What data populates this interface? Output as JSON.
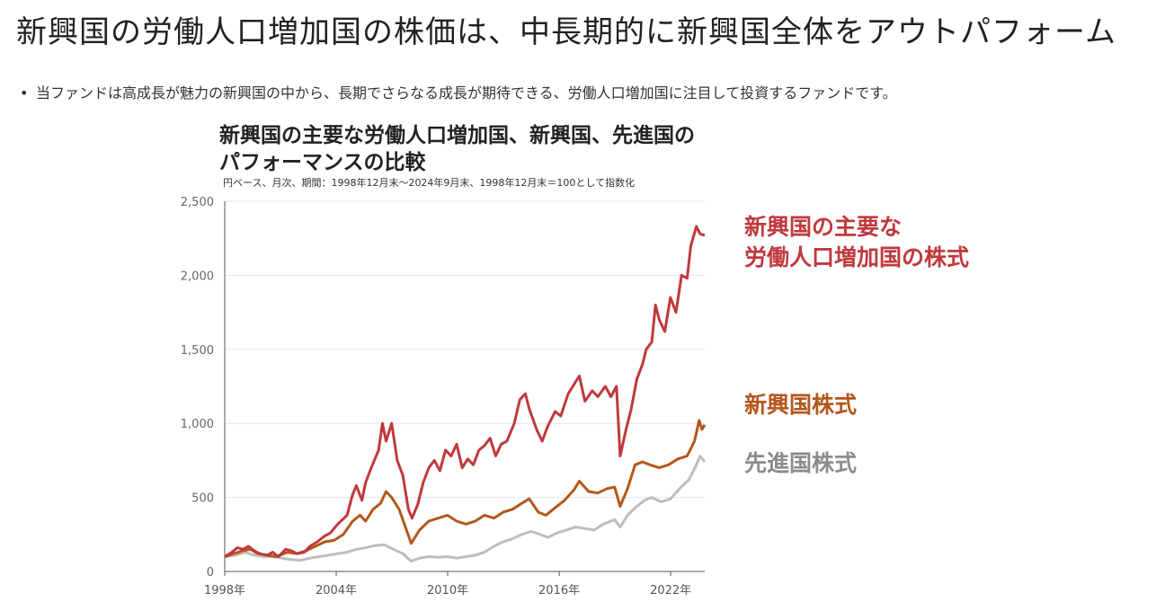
{
  "page": {
    "headline": "新興国の労働人口増加国の株価は、中長期的に新興国全体をアウトパフォーム",
    "bullet": "当ファンドは高成長が魅力の新興国の中から、長期でさらなる成長が期待できる、労働人口増加国に注目して投資するファンドです。",
    "bullet_marker": "•"
  },
  "chart_data": {
    "type": "line",
    "title_line1": "新興国の主要な労働人口増加国、新興国、先進国の",
    "title_line2": "パフォーマンスの比較",
    "subtitle": "円ベース、月次、期間：1998年12月末～2024年9月末、1998年12月末＝100として指数化",
    "x_ticks": [
      "1998年",
      "2004年",
      "2010年",
      "2016年",
      "2022年"
    ],
    "y_ticks": [
      "0",
      "500",
      "1,000",
      "1,500",
      "2,000",
      "2,500"
    ],
    "ylim": [
      0,
      2500
    ],
    "xlim": [
      1998.917,
      2024.75
    ],
    "grid": "horizontal",
    "series": [
      {
        "label_line1": "新興国の主要な",
        "label_line2": "労働人口増加国の株式",
        "color": "#c0393d",
        "points": [
          [
            1998.92,
            100
          ],
          [
            1999.3,
            130
          ],
          [
            1999.6,
            160
          ],
          [
            1999.9,
            150
          ],
          [
            2000.2,
            170
          ],
          [
            2000.5,
            140
          ],
          [
            2000.8,
            120
          ],
          [
            2001.2,
            110
          ],
          [
            2001.5,
            130
          ],
          [
            2001.8,
            100
          ],
          [
            2002.2,
            150
          ],
          [
            2002.5,
            140
          ],
          [
            2002.8,
            120
          ],
          [
            2003.2,
            130
          ],
          [
            2003.5,
            170
          ],
          [
            2003.9,
            200
          ],
          [
            2004.3,
            240
          ],
          [
            2004.6,
            260
          ],
          [
            2005.0,
            320
          ],
          [
            2005.5,
            380
          ],
          [
            2005.8,
            520
          ],
          [
            2006.0,
            580
          ],
          [
            2006.3,
            480
          ],
          [
            2006.5,
            600
          ],
          [
            2006.8,
            700
          ],
          [
            2007.2,
            820
          ],
          [
            2007.4,
            1000
          ],
          [
            2007.6,
            880
          ],
          [
            2007.9,
            1000
          ],
          [
            2008.2,
            750
          ],
          [
            2008.5,
            650
          ],
          [
            2008.8,
            420
          ],
          [
            2009.0,
            360
          ],
          [
            2009.3,
            450
          ],
          [
            2009.6,
            600
          ],
          [
            2009.9,
            700
          ],
          [
            2010.2,
            750
          ],
          [
            2010.5,
            680
          ],
          [
            2010.8,
            820
          ],
          [
            2011.1,
            780
          ],
          [
            2011.4,
            860
          ],
          [
            2011.7,
            700
          ],
          [
            2012.0,
            760
          ],
          [
            2012.3,
            720
          ],
          [
            2012.6,
            820
          ],
          [
            2012.9,
            850
          ],
          [
            2013.2,
            900
          ],
          [
            2013.5,
            780
          ],
          [
            2013.8,
            860
          ],
          [
            2014.1,
            880
          ],
          [
            2014.5,
            1000
          ],
          [
            2014.8,
            1160
          ],
          [
            2015.1,
            1200
          ],
          [
            2015.3,
            1100
          ],
          [
            2015.7,
            960
          ],
          [
            2016.0,
            880
          ],
          [
            2016.3,
            980
          ],
          [
            2016.7,
            1080
          ],
          [
            2017.0,
            1050
          ],
          [
            2017.4,
            1200
          ],
          [
            2017.8,
            1280
          ],
          [
            2018.0,
            1320
          ],
          [
            2018.3,
            1150
          ],
          [
            2018.7,
            1220
          ],
          [
            2019.0,
            1180
          ],
          [
            2019.4,
            1250
          ],
          [
            2019.7,
            1180
          ],
          [
            2020.0,
            1250
          ],
          [
            2020.2,
            780
          ],
          [
            2020.5,
            950
          ],
          [
            2020.8,
            1100
          ],
          [
            2021.1,
            1300
          ],
          [
            2021.4,
            1400
          ],
          [
            2021.6,
            1500
          ],
          [
            2021.9,
            1550
          ],
          [
            2022.1,
            1800
          ],
          [
            2022.3,
            1700
          ],
          [
            2022.6,
            1620
          ],
          [
            2022.9,
            1850
          ],
          [
            2023.2,
            1750
          ],
          [
            2023.5,
            2000
          ],
          [
            2023.8,
            1980
          ],
          [
            2024.0,
            2200
          ],
          [
            2024.3,
            2330
          ],
          [
            2024.5,
            2280
          ],
          [
            2024.75,
            2270
          ]
        ]
      },
      {
        "label": "新興国株式",
        "color": "#b3581b",
        "points": [
          [
            1998.92,
            100
          ],
          [
            1999.4,
            120
          ],
          [
            1999.9,
            140
          ],
          [
            2000.3,
            150
          ],
          [
            2000.7,
            120
          ],
          [
            2001.2,
            110
          ],
          [
            2001.7,
            100
          ],
          [
            2002.3,
            130
          ],
          [
            2002.8,
            120
          ],
          [
            2003.3,
            140
          ],
          [
            2003.8,
            170
          ],
          [
            2004.3,
            200
          ],
          [
            2004.8,
            210
          ],
          [
            2005.3,
            250
          ],
          [
            2005.8,
            340
          ],
          [
            2006.2,
            380
          ],
          [
            2006.5,
            340
          ],
          [
            2006.9,
            420
          ],
          [
            2007.3,
            460
          ],
          [
            2007.6,
            540
          ],
          [
            2007.9,
            500
          ],
          [
            2008.3,
            420
          ],
          [
            2008.7,
            280
          ],
          [
            2008.95,
            190
          ],
          [
            2009.4,
            280
          ],
          [
            2009.9,
            340
          ],
          [
            2010.4,
            360
          ],
          [
            2010.9,
            380
          ],
          [
            2011.4,
            340
          ],
          [
            2011.9,
            320
          ],
          [
            2012.4,
            340
          ],
          [
            2012.9,
            380
          ],
          [
            2013.4,
            360
          ],
          [
            2013.9,
            400
          ],
          [
            2014.4,
            420
          ],
          [
            2014.9,
            460
          ],
          [
            2015.3,
            490
          ],
          [
            2015.8,
            400
          ],
          [
            2016.2,
            380
          ],
          [
            2016.7,
            430
          ],
          [
            2017.2,
            480
          ],
          [
            2017.7,
            550
          ],
          [
            2018.0,
            610
          ],
          [
            2018.5,
            540
          ],
          [
            2019.0,
            530
          ],
          [
            2019.5,
            560
          ],
          [
            2019.9,
            570
          ],
          [
            2020.2,
            440
          ],
          [
            2020.6,
            560
          ],
          [
            2021.0,
            720
          ],
          [
            2021.4,
            740
          ],
          [
            2021.8,
            720
          ],
          [
            2022.3,
            700
          ],
          [
            2022.8,
            720
          ],
          [
            2023.3,
            760
          ],
          [
            2023.8,
            780
          ],
          [
            2024.2,
            880
          ],
          [
            2024.45,
            1020
          ],
          [
            2024.6,
            960
          ],
          [
            2024.75,
            990
          ]
        ]
      },
      {
        "label": "先進国株式",
        "color": "#bdbdbd",
        "points": [
          [
            1998.92,
            100
          ],
          [
            1999.5,
            110
          ],
          [
            2000.0,
            130
          ],
          [
            2000.5,
            110
          ],
          [
            2001.0,
            100
          ],
          [
            2001.5,
            100
          ],
          [
            2002.0,
            90
          ],
          [
            2002.5,
            80
          ],
          [
            2003.0,
            75
          ],
          [
            2003.5,
            90
          ],
          [
            2004.0,
            100
          ],
          [
            2004.5,
            110
          ],
          [
            2005.0,
            120
          ],
          [
            2005.5,
            130
          ],
          [
            2006.0,
            150
          ],
          [
            2006.5,
            160
          ],
          [
            2007.0,
            175
          ],
          [
            2007.5,
            180
          ],
          [
            2008.0,
            150
          ],
          [
            2008.5,
            120
          ],
          [
            2008.95,
            70
          ],
          [
            2009.4,
            90
          ],
          [
            2009.9,
            100
          ],
          [
            2010.4,
            95
          ],
          [
            2010.9,
            100
          ],
          [
            2011.4,
            90
          ],
          [
            2011.9,
            100
          ],
          [
            2012.4,
            110
          ],
          [
            2012.9,
            130
          ],
          [
            2013.4,
            170
          ],
          [
            2013.9,
            200
          ],
          [
            2014.4,
            220
          ],
          [
            2014.9,
            250
          ],
          [
            2015.4,
            270
          ],
          [
            2015.9,
            250
          ],
          [
            2016.3,
            230
          ],
          [
            2016.8,
            260
          ],
          [
            2017.3,
            280
          ],
          [
            2017.8,
            300
          ],
          [
            2018.3,
            290
          ],
          [
            2018.8,
            280
          ],
          [
            2019.3,
            320
          ],
          [
            2019.9,
            350
          ],
          [
            2020.2,
            300
          ],
          [
            2020.6,
            380
          ],
          [
            2021.0,
            430
          ],
          [
            2021.5,
            480
          ],
          [
            2021.9,
            500
          ],
          [
            2022.4,
            470
          ],
          [
            2022.9,
            490
          ],
          [
            2023.4,
            560
          ],
          [
            2023.9,
            620
          ],
          [
            2024.3,
            720
          ],
          [
            2024.5,
            780
          ],
          [
            2024.75,
            740
          ]
        ]
      }
    ]
  }
}
